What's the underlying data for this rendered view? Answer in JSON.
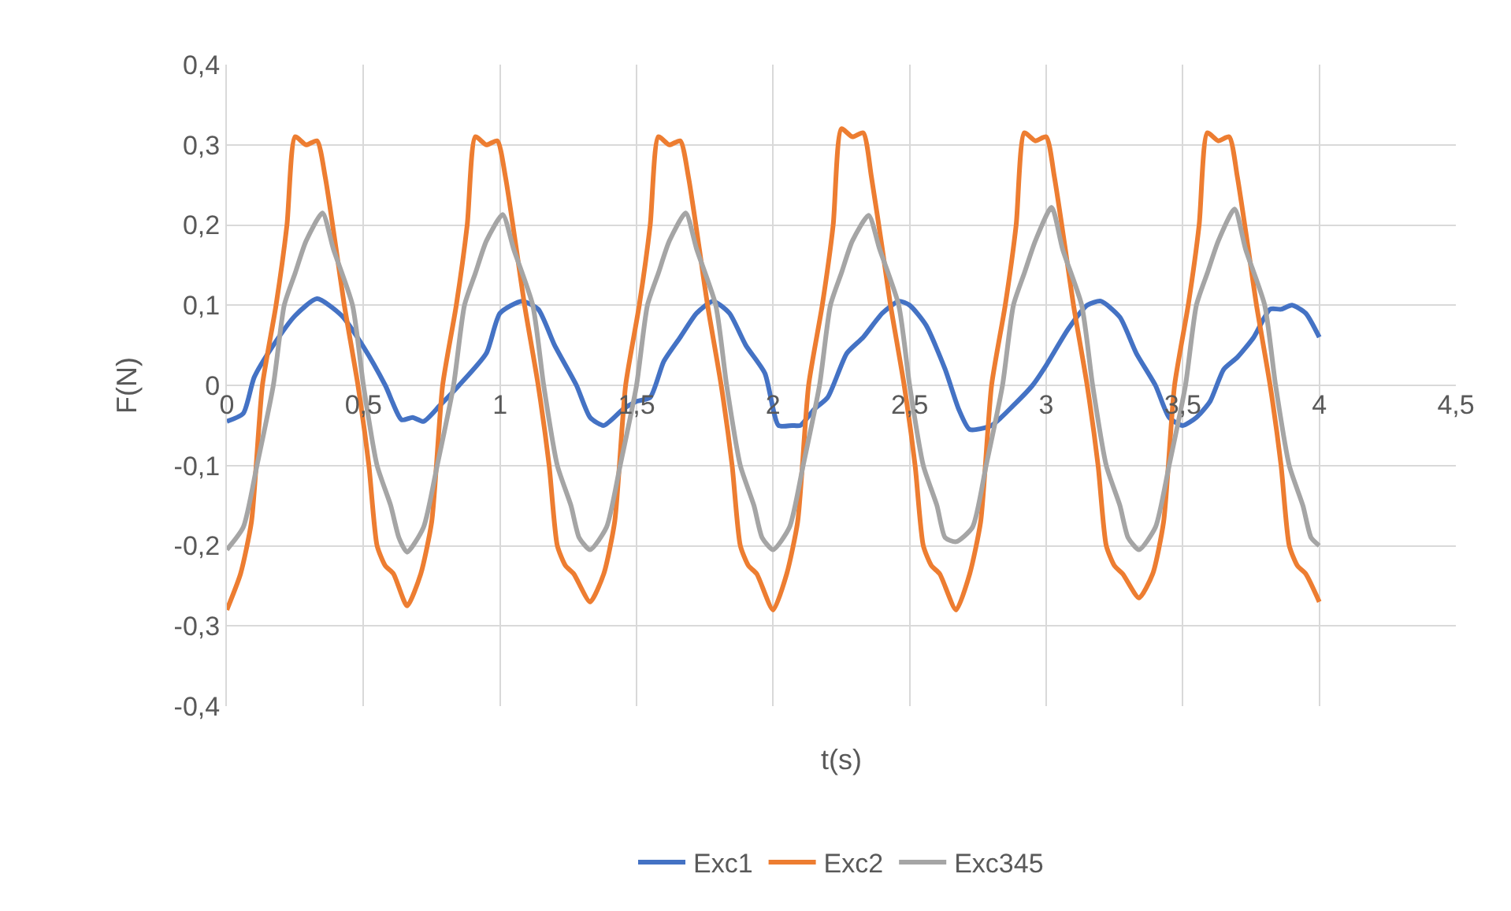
{
  "chart_data": {
    "type": "line",
    "xlabel": "t(s)",
    "ylabel": "F(N)",
    "xlim": [
      0,
      4.5
    ],
    "xticks": [
      0,
      {
        "value": 0.5,
        "label": "0,5"
      },
      1,
      {
        "value": 1.5,
        "label": "1,5"
      },
      2,
      {
        "value": 2.5,
        "label": "2,5"
      },
      3,
      {
        "value": 3.5,
        "label": "3,5"
      },
      4,
      {
        "value": 4.5,
        "label": "4,5"
      }
    ],
    "ylim": [
      -0.4,
      0.4
    ],
    "yticks": [
      {
        "value": -0.4,
        "label": "-0,4"
      },
      {
        "value": -0.3,
        "label": "-0,3"
      },
      {
        "value": -0.2,
        "label": "-0,2"
      },
      {
        "value": -0.1,
        "label": "-0,1"
      },
      0,
      {
        "value": 0.1,
        "label": "0,1"
      },
      {
        "value": 0.2,
        "label": "0,2"
      },
      {
        "value": 0.3,
        "label": "0,3"
      },
      {
        "value": 0.4,
        "label": "0,4"
      }
    ],
    "grid": true,
    "legend": "bottom",
    "marker": "none",
    "line_style": "solid",
    "series": [
      {
        "name": "Exc1",
        "color": "#4472c4",
        "x": [
          0,
          0.06,
          0.1,
          0.17,
          0.25,
          0.33,
          0.42,
          0.5,
          0.58,
          0.64,
          0.68,
          0.72,
          0.78,
          0.85,
          0.95,
          1.0,
          1.08,
          1.14,
          1.2,
          1.28,
          1.33,
          1.38,
          1.45,
          1.5,
          1.55,
          1.6,
          1.66,
          1.72,
          1.78,
          1.84,
          1.9,
          1.97,
          2.02,
          2.07,
          2.1,
          2.15,
          2.2,
          2.27,
          2.33,
          2.4,
          2.46,
          2.5,
          2.56,
          2.63,
          2.68,
          2.72,
          2.8,
          2.88,
          2.95,
          3.0,
          3.08,
          3.15,
          3.2,
          3.27,
          3.33,
          3.4,
          3.45,
          3.5,
          3.55,
          3.6,
          3.65,
          3.7,
          3.76,
          3.82,
          3.86,
          3.9,
          3.95,
          4.0
        ],
        "values": [
          -0.045,
          -0.035,
          0.01,
          0.05,
          0.087,
          0.108,
          0.087,
          0.048,
          0.0,
          -0.043,
          -0.04,
          -0.045,
          -0.025,
          0.0,
          0.04,
          0.09,
          0.105,
          0.095,
          0.05,
          0.0,
          -0.04,
          -0.05,
          -0.03,
          -0.02,
          -0.015,
          0.03,
          0.06,
          0.09,
          0.105,
          0.09,
          0.05,
          0.015,
          -0.05,
          -0.05,
          -0.05,
          -0.03,
          -0.015,
          0.04,
          0.06,
          0.09,
          0.105,
          0.1,
          0.075,
          0.02,
          -0.03,
          -0.055,
          -0.05,
          -0.025,
          0.0,
          0.025,
          0.07,
          0.1,
          0.105,
          0.085,
          0.04,
          0.0,
          -0.04,
          -0.05,
          -0.04,
          -0.02,
          0.02,
          0.035,
          0.06,
          0.095,
          0.095,
          0.1,
          0.09,
          0.06
        ]
      },
      {
        "name": "Exc2",
        "color": "#ed7d31",
        "x": [
          0,
          0.05,
          0.09,
          0.13,
          0.18,
          0.22,
          0.25,
          0.29,
          0.33,
          0.36,
          0.4,
          0.43,
          0.48,
          0.52,
          0.55,
          0.58,
          0.61,
          0.66,
          0.71,
          0.75,
          0.79,
          0.84,
          0.88,
          0.91,
          0.95,
          0.99,
          1.02,
          1.06,
          1.09,
          1.14,
          1.18,
          1.21,
          1.24,
          1.27,
          1.33,
          1.38,
          1.42,
          1.46,
          1.51,
          1.55,
          1.58,
          1.62,
          1.66,
          1.69,
          1.73,
          1.76,
          1.81,
          1.85,
          1.88,
          1.91,
          1.94,
          2.0,
          2.05,
          2.09,
          2.13,
          2.18,
          2.22,
          2.25,
          2.29,
          2.33,
          2.36,
          2.4,
          2.43,
          2.48,
          2.52,
          2.55,
          2.58,
          2.61,
          2.67,
          2.72,
          2.76,
          2.8,
          2.85,
          2.89,
          2.92,
          2.96,
          3.0,
          3.03,
          3.07,
          3.1,
          3.15,
          3.19,
          3.22,
          3.25,
          3.28,
          3.34,
          3.39,
          3.43,
          3.47,
          3.52,
          3.56,
          3.59,
          3.63,
          3.67,
          3.7,
          3.74,
          3.77,
          3.82,
          3.86,
          3.89,
          3.92,
          3.95,
          4.0
        ],
        "values": [
          -0.28,
          -0.235,
          -0.17,
          0.0,
          0.1,
          0.2,
          0.31,
          0.3,
          0.305,
          0.26,
          0.17,
          0.1,
          0.0,
          -0.1,
          -0.2,
          -0.225,
          -0.235,
          -0.275,
          -0.235,
          -0.17,
          0.0,
          0.1,
          0.2,
          0.31,
          0.3,
          0.305,
          0.26,
          0.17,
          0.1,
          0.0,
          -0.1,
          -0.2,
          -0.225,
          -0.235,
          -0.27,
          -0.235,
          -0.17,
          0.0,
          0.1,
          0.2,
          0.31,
          0.3,
          0.305,
          0.26,
          0.17,
          0.1,
          0.0,
          -0.1,
          -0.2,
          -0.225,
          -0.235,
          -0.28,
          -0.235,
          -0.17,
          0.0,
          0.1,
          0.2,
          0.32,
          0.31,
          0.315,
          0.26,
          0.17,
          0.1,
          0.0,
          -0.1,
          -0.2,
          -0.225,
          -0.235,
          -0.28,
          -0.235,
          -0.17,
          0.0,
          0.1,
          0.2,
          0.315,
          0.305,
          0.31,
          0.26,
          0.17,
          0.1,
          0.0,
          -0.1,
          -0.2,
          -0.225,
          -0.235,
          -0.265,
          -0.235,
          -0.17,
          0.0,
          0.1,
          0.2,
          0.315,
          0.305,
          0.31,
          0.26,
          0.17,
          0.1,
          0.0,
          -0.1,
          -0.2,
          -0.225,
          -0.235,
          -0.27
        ]
      },
      {
        "name": "Exc345",
        "color": "#a5a5a5",
        "x": [
          0,
          0.06,
          0.11,
          0.17,
          0.21,
          0.25,
          0.29,
          0.35,
          0.39,
          0.46,
          0.5,
          0.55,
          0.6,
          0.63,
          0.66,
          0.72,
          0.77,
          0.83,
          0.87,
          0.91,
          0.95,
          1.01,
          1.05,
          1.12,
          1.16,
          1.21,
          1.26,
          1.29,
          1.33,
          1.39,
          1.44,
          1.5,
          1.54,
          1.58,
          1.62,
          1.68,
          1.72,
          1.79,
          1.83,
          1.88,
          1.93,
          1.96,
          2.0,
          2.06,
          2.11,
          2.17,
          2.21,
          2.25,
          2.29,
          2.35,
          2.39,
          2.46,
          2.5,
          2.55,
          2.6,
          2.63,
          2.67,
          2.73,
          2.78,
          2.84,
          2.88,
          2.92,
          2.96,
          3.02,
          3.06,
          3.13,
          3.17,
          3.22,
          3.27,
          3.3,
          3.34,
          3.4,
          3.45,
          3.51,
          3.55,
          3.59,
          3.63,
          3.69,
          3.73,
          3.8,
          3.84,
          3.89,
          3.94,
          3.97,
          4.0
        ],
        "values": [
          -0.205,
          -0.177,
          -0.1,
          0.0,
          0.1,
          0.14,
          0.18,
          0.215,
          0.17,
          0.1,
          0.0,
          -0.1,
          -0.15,
          -0.19,
          -0.208,
          -0.177,
          -0.1,
          0.0,
          0.1,
          0.14,
          0.18,
          0.213,
          0.17,
          0.1,
          0.0,
          -0.1,
          -0.15,
          -0.19,
          -0.205,
          -0.177,
          -0.1,
          0.0,
          0.1,
          0.14,
          0.18,
          0.215,
          0.17,
          0.1,
          0.0,
          -0.1,
          -0.15,
          -0.19,
          -0.205,
          -0.177,
          -0.1,
          0.0,
          0.1,
          0.14,
          0.18,
          0.212,
          0.17,
          0.1,
          0.0,
          -0.1,
          -0.15,
          -0.19,
          -0.195,
          -0.177,
          -0.1,
          0.0,
          0.1,
          0.14,
          0.18,
          0.222,
          0.17,
          0.1,
          0.0,
          -0.1,
          -0.15,
          -0.19,
          -0.205,
          -0.177,
          -0.1,
          0.0,
          0.1,
          0.14,
          0.18,
          0.22,
          0.17,
          0.1,
          0.0,
          -0.1,
          -0.15,
          -0.19,
          -0.2
        ]
      }
    ]
  }
}
